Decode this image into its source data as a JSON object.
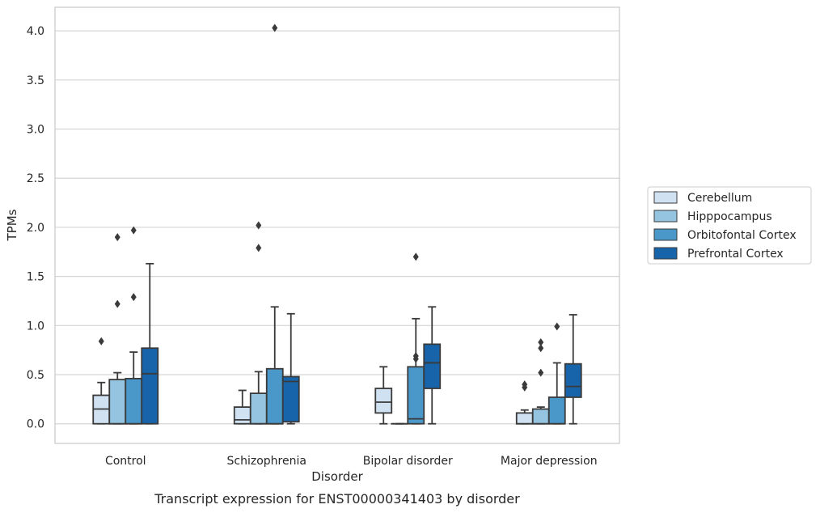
{
  "chart_data": {
    "type": "box",
    "caption": "Transcript expression for ENST00000341403 by disorder",
    "xlabel": "Disorder",
    "ylabel": "TPMs",
    "ylim": [
      -0.2,
      4.24
    ],
    "yticks": [
      "0.0",
      "0.5",
      "1.0",
      "1.5",
      "2.0",
      "2.5",
      "3.0",
      "3.5",
      "4.0"
    ],
    "grid": "horizontal",
    "legend_position": "right",
    "categories": [
      "Control",
      "Schizophrenia",
      "Bipolar disorder",
      "Major depression"
    ],
    "series": [
      {
        "name": "Cerebellum",
        "color": "#d0e1f2",
        "boxes": [
          {
            "whisker_low": 0.0,
            "q1": 0.0,
            "median": 0.15,
            "q3": 0.29,
            "whisker_high": 0.42,
            "outliers": [
              0.84
            ]
          },
          {
            "whisker_low": 0.0,
            "q1": 0.0,
            "median": 0.04,
            "q3": 0.17,
            "whisker_high": 0.34,
            "outliers": []
          },
          {
            "whisker_low": 0.0,
            "q1": 0.11,
            "median": 0.22,
            "q3": 0.36,
            "whisker_high": 0.58,
            "outliers": []
          },
          {
            "whisker_low": 0.0,
            "q1": 0.0,
            "median": 0.0,
            "q3": 0.11,
            "whisker_high": 0.14,
            "outliers": [
              0.37,
              0.4
            ]
          }
        ]
      },
      {
        "name": "Hipppocampus",
        "color": "#94c4df",
        "boxes": [
          {
            "whisker_low": 0.0,
            "q1": 0.0,
            "median": 0.0,
            "q3": 0.45,
            "whisker_high": 0.52,
            "outliers": [
              1.22,
              1.9
            ]
          },
          {
            "whisker_low": 0.0,
            "q1": 0.0,
            "median": 0.0,
            "q3": 0.31,
            "whisker_high": 0.53,
            "outliers": [
              1.79,
              2.02
            ]
          },
          {
            "whisker_low": 0.0,
            "q1": 0.0,
            "median": 0.0,
            "q3": 0.0,
            "whisker_high": 0.0,
            "outliers": []
          },
          {
            "whisker_low": 0.0,
            "q1": 0.0,
            "median": 0.0,
            "q3": 0.15,
            "whisker_high": 0.17,
            "outliers": [
              0.52,
              0.77,
              0.83
            ]
          }
        ]
      },
      {
        "name": "Orbitofontal Cortex",
        "color": "#4a98c9",
        "boxes": [
          {
            "whisker_low": 0.0,
            "q1": 0.0,
            "median": 0.0,
            "q3": 0.46,
            "whisker_high": 0.73,
            "outliers": [
              1.29,
              1.97
            ]
          },
          {
            "whisker_low": 0.0,
            "q1": 0.0,
            "median": 0.0,
            "q3": 0.56,
            "whisker_high": 1.19,
            "outliers": [
              4.03
            ]
          },
          {
            "whisker_low": 0.0,
            "q1": 0.0,
            "median": 0.05,
            "q3": 0.58,
            "whisker_high": 1.07,
            "outliers": [
              0.66,
              0.69,
              1.7
            ]
          },
          {
            "whisker_low": 0.0,
            "q1": 0.0,
            "median": 0.0,
            "q3": 0.27,
            "whisker_high": 0.62,
            "outliers": [
              0.99
            ]
          }
        ]
      },
      {
        "name": "Prefrontal Cortex",
        "color": "#1764ab",
        "boxes": [
          {
            "whisker_low": 0.0,
            "q1": 0.0,
            "median": 0.51,
            "q3": 0.77,
            "whisker_high": 1.63,
            "outliers": []
          },
          {
            "whisker_low": 0.0,
            "q1": 0.02,
            "median": 0.43,
            "q3": 0.48,
            "whisker_high": 1.12,
            "outliers": []
          },
          {
            "whisker_low": 0.0,
            "q1": 0.36,
            "median": 0.62,
            "q3": 0.81,
            "whisker_high": 1.19,
            "outliers": []
          },
          {
            "whisker_low": 0.0,
            "q1": 0.27,
            "median": 0.38,
            "q3": 0.61,
            "whisker_high": 1.11,
            "outliers": []
          }
        ]
      }
    ]
  }
}
